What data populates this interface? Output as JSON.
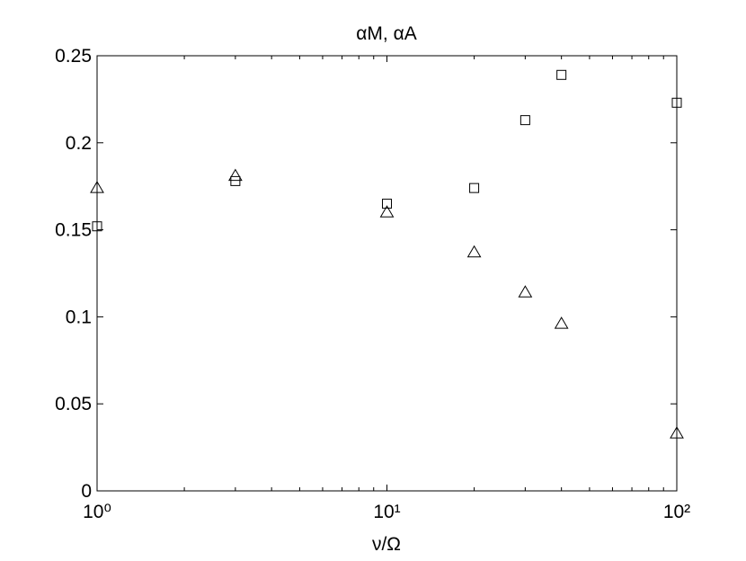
{
  "chart_data": {
    "type": "scatter",
    "title": "αM, αA",
    "xlabel": "ν/Ω",
    "xscale": "log",
    "x": [
      1,
      3,
      10,
      20,
      30,
      40,
      100
    ],
    "series": [
      {
        "marker": "square",
        "color": "#000000",
        "values": [
          0.152,
          0.178,
          0.165,
          0.174,
          0.213,
          0.239,
          0.223
        ]
      },
      {
        "marker": "triangle",
        "color": "#000000",
        "values": [
          0.174,
          0.181,
          0.16,
          0.137,
          0.114,
          0.096,
          0.033
        ]
      }
    ],
    "xlim": [
      1,
      100
    ],
    "xticks": [
      {
        "value": 1,
        "label": "10⁰"
      },
      {
        "value": 10,
        "label": "10¹"
      },
      {
        "value": 100,
        "label": "10²"
      }
    ],
    "ylim": [
      0,
      0.25
    ],
    "yticks": [
      0,
      0.05,
      0.1,
      0.15,
      0.2,
      0.25
    ]
  }
}
